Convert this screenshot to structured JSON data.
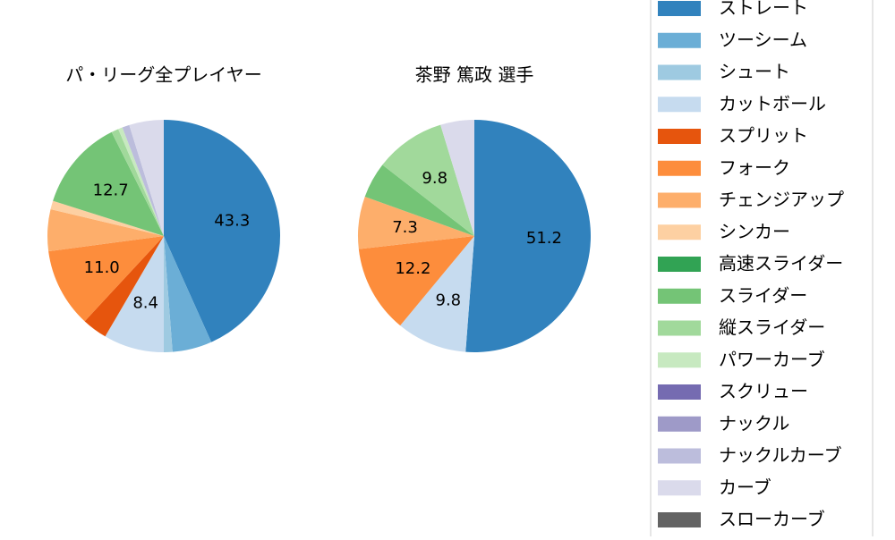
{
  "chart_data": [
    {
      "type": "pie",
      "title": "パ・リーグ全プレイヤー",
      "categories": [
        "ストレート",
        "ツーシーム",
        "シュート",
        "カットボール",
        "スプリット",
        "フォーク",
        "チェンジアップ",
        "シンカー",
        "高速スライダー",
        "スライダー",
        "縦スライダー",
        "パワーカーブ",
        "スクリュー",
        "ナックル",
        "ナックルカーブ",
        "カーブ",
        "スローカーブ"
      ],
      "colors": [
        "#3182bd",
        "#6baed6",
        "#9ecae1",
        "#c6dbef",
        "#e6550d",
        "#fd8d3c",
        "#fdae6b",
        "#fdd0a2",
        "#31a354",
        "#74c476",
        "#a1d99b",
        "#c7e9c0",
        "#756bb1",
        "#9e9ac8",
        "#bcbddc",
        "#dadaeb",
        "#636363"
      ],
      "values": [
        43.3,
        5.5,
        1.2,
        8.4,
        3.5,
        11.0,
        5.8,
        1.2,
        0,
        12.7,
        1.0,
        0.6,
        0,
        0,
        1.0,
        4.8,
        0
      ],
      "value_labels": [
        "43.3",
        null,
        null,
        "8.4",
        null,
        "11.0",
        null,
        null,
        null,
        "12.7",
        null,
        null,
        null,
        null,
        null,
        null,
        null
      ]
    },
    {
      "type": "pie",
      "title": "茶野 篤政  選手",
      "categories": [
        "ストレート",
        "ツーシーム",
        "シュート",
        "カットボール",
        "スプリット",
        "フォーク",
        "チェンジアップ",
        "シンカー",
        "高速スライダー",
        "スライダー",
        "縦スライダー",
        "パワーカーブ",
        "スクリュー",
        "ナックル",
        "ナックルカーブ",
        "カーブ",
        "スローカーブ"
      ],
      "colors": [
        "#3182bd",
        "#6baed6",
        "#9ecae1",
        "#c6dbef",
        "#e6550d",
        "#fd8d3c",
        "#fdae6b",
        "#fdd0a2",
        "#31a354",
        "#74c476",
        "#a1d99b",
        "#c7e9c0",
        "#756bb1",
        "#9e9ac8",
        "#bcbddc",
        "#dadaeb",
        "#636363"
      ],
      "values": [
        51.2,
        0,
        0,
        9.8,
        0,
        12.2,
        7.3,
        0,
        0,
        5.0,
        9.8,
        0,
        0,
        0,
        0,
        4.7,
        0
      ],
      "value_labels": [
        "51.2",
        null,
        null,
        "9.8",
        null,
        "12.2",
        "7.3",
        null,
        null,
        null,
        "9.8",
        null,
        null,
        null,
        null,
        null,
        null
      ]
    }
  ]
}
